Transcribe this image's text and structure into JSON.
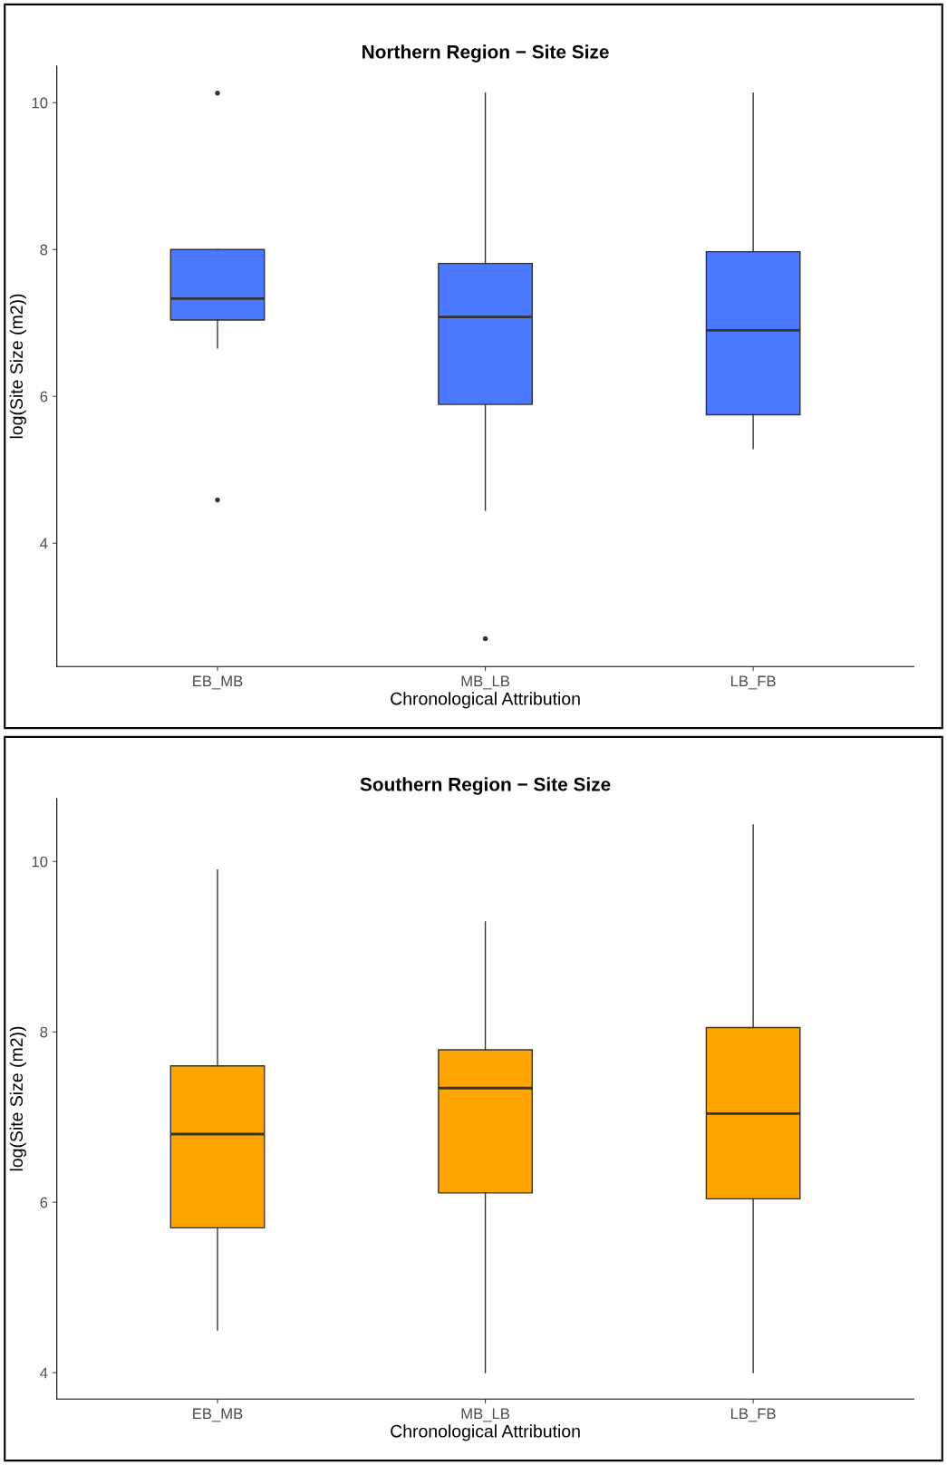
{
  "chart_data": [
    {
      "type": "box",
      "title": "Northern Region − Site Size",
      "xlabel": "Chronological Attribution",
      "ylabel": "log(Site Size (m2))",
      "categories": [
        "EB_MB",
        "MB_LB",
        "LB_FB"
      ],
      "ylim": [
        2.32,
        10.5
      ],
      "yticks": [
        4,
        6,
        8,
        10
      ],
      "grid": false,
      "legend": false,
      "series": [
        {
          "color": "#4a78ff",
          "boxes": [
            {
              "low": 6.66,
              "q1": 7.04,
              "median": 7.33,
              "q3": 8.0,
              "high": 8.0,
              "outliers": [
                10.13,
                4.59
              ]
            },
            {
              "low": 4.45,
              "q1": 5.89,
              "median": 7.08,
              "q3": 7.81,
              "high": 10.13,
              "outliers": [
                2.7
              ]
            },
            {
              "low": 5.29,
              "q1": 5.75,
              "median": 6.9,
              "q3": 7.97,
              "high": 10.13
            }
          ]
        }
      ]
    },
    {
      "type": "box",
      "title": "Southern Region − Site Size",
      "xlabel": "Chronological Attribution",
      "ylabel": "log(Site Size (m2))",
      "categories": [
        "EB_MB",
        "MB_LB",
        "LB_FB"
      ],
      "ylim": [
        3.69,
        10.74
      ],
      "yticks": [
        4,
        6,
        8,
        10
      ],
      "grid": false,
      "legend": false,
      "series": [
        {
          "color": "#ffa500",
          "boxes": [
            {
              "low": 4.5,
              "q1": 5.7,
              "median": 6.8,
              "q3": 7.6,
              "high": 9.9
            },
            {
              "low": 4.0,
              "q1": 6.11,
              "median": 7.34,
              "q3": 7.79,
              "high": 9.29
            },
            {
              "low": 4.0,
              "q1": 6.04,
              "median": 7.04,
              "q3": 8.05,
              "high": 10.43
            }
          ]
        }
      ]
    }
  ]
}
